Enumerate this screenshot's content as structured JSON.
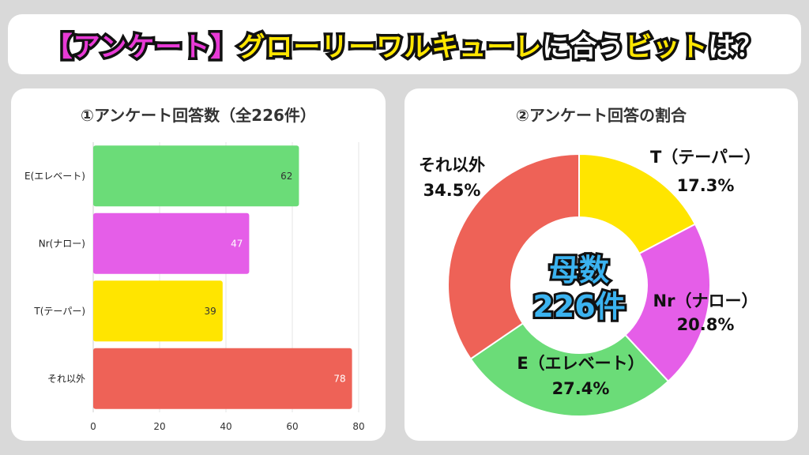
{
  "header": {
    "part1": "【アンケート】",
    "part2": "グローリーワルキューレ",
    "part3": "に合う",
    "part4": "ビット",
    "part5": "は？"
  },
  "colors": {
    "E": "#6bdc78",
    "Nr": "#e55ee8",
    "T": "#ffe500",
    "other": "#ee6257"
  },
  "chart_data": [
    {
      "type": "bar",
      "orientation": "horizontal",
      "title": "①アンケート回答数（全226件）",
      "categories": [
        "E(エレベート)",
        "Nr(ナロー)",
        "T(テーパー)",
        "それ以外"
      ],
      "values": [
        62,
        47,
        39,
        78
      ],
      "value_labels": [
        "62",
        "47",
        "39",
        "78"
      ],
      "xlim": [
        0,
        80
      ],
      "xticks": [
        "0",
        "20",
        "40",
        "60",
        "80"
      ],
      "grid": true
    },
    {
      "type": "pie",
      "donut": true,
      "title": "②アンケート回答の割合",
      "center_line1": "母数",
      "center_line2": "226件",
      "slices": [
        {
          "label": "T（テーパー）",
          "value": 17.3,
          "pct": "17.3%",
          "color_key": "T"
        },
        {
          "label": "Nr（ナロー）",
          "value": 20.8,
          "pct": "20.8%",
          "color_key": "Nr"
        },
        {
          "label": "E（エレベート）",
          "value": 27.4,
          "pct": "27.4%",
          "color_key": "E"
        },
        {
          "label": "それ以外",
          "value": 34.5,
          "pct": "34.5%",
          "color_key": "other"
        }
      ]
    }
  ]
}
